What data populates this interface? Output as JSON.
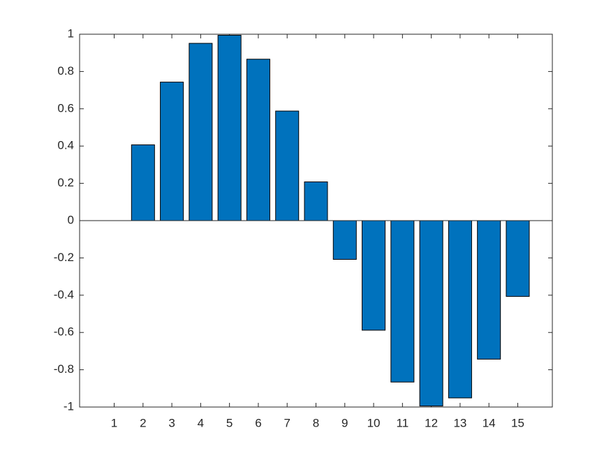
{
  "chart_data": {
    "type": "bar",
    "x": [
      1,
      2,
      3,
      4,
      5,
      6,
      7,
      8,
      9,
      10,
      11,
      12,
      13,
      14,
      15
    ],
    "values": [
      0,
      0.4067,
      0.7431,
      0.9511,
      0.9945,
      0.866,
      0.5878,
      0.2079,
      -0.2079,
      -0.5878,
      -0.866,
      -0.9945,
      -0.9511,
      -0.7431,
      -0.4067
    ],
    "color": "#0072bd",
    "xlim": [
      -0.2,
      16.2
    ],
    "xticks": [
      1,
      2,
      3,
      4,
      5,
      6,
      7,
      8,
      9,
      10,
      11,
      12,
      13,
      14,
      15
    ],
    "ylim": [
      -1,
      1
    ],
    "yticks": [
      -1,
      -0.8,
      -0.6,
      -0.4,
      -0.2,
      0,
      0.2,
      0.4,
      0.6,
      0.8,
      1
    ],
    "grid": false
  }
}
